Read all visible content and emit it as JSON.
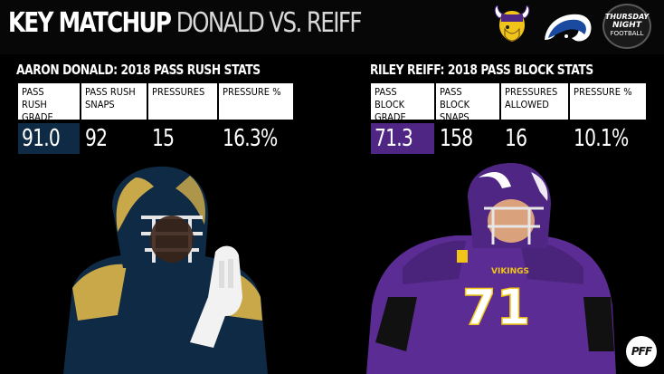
{
  "header": {
    "title_main": "KEY MATCHUP",
    "title_sub": "DONALD VS. REIFF",
    "logos": {
      "vikings": "vikings-logo",
      "rams": "rams-logo",
      "tnf": {
        "line1": "THURSDAY",
        "line2": "NIGHT",
        "line3": "FOOTBALL"
      }
    }
  },
  "left_panel": {
    "title": "AARON DONALD: 2018 PASS RUSH STATS",
    "accent": "#0f2a44",
    "columns": [
      {
        "label_line1": "PASS RUSH",
        "label_line2": "GRADE",
        "value": "91.0"
      },
      {
        "label_line1": "PASS RUSH",
        "label_line2": "SNAPS",
        "value": "92"
      },
      {
        "label_line1": "PRESSURES",
        "label_line2": "",
        "value": "15"
      },
      {
        "label_line1": "PRESSURE %",
        "label_line2": "",
        "value": "16.3%"
      }
    ]
  },
  "right_panel": {
    "title": "RILEY REIFF: 2018 PASS BLOCK STATS",
    "accent": "#4f2683",
    "columns": [
      {
        "label_line1": "PASS BLOCK",
        "label_line2": "GRADE",
        "value": "71.3"
      },
      {
        "label_line1": "PASS BLOCK",
        "label_line2": "SNAPS",
        "value": "158"
      },
      {
        "label_line1": "PRESSURES",
        "label_line2": "ALLOWED",
        "value": "16"
      },
      {
        "label_line1": "PRESSURE %",
        "label_line2": "",
        "value": "10.1%"
      }
    ]
  },
  "players": {
    "left_jersey_number": "",
    "right_jersey_number": "71",
    "right_jersey_text": "VIKINGS"
  },
  "watermark": "PFF",
  "colors": {
    "background": "#000000",
    "rams_navy": "#0f2a44",
    "vikings_purple": "#4f2683",
    "gold": "#c9a84a"
  }
}
